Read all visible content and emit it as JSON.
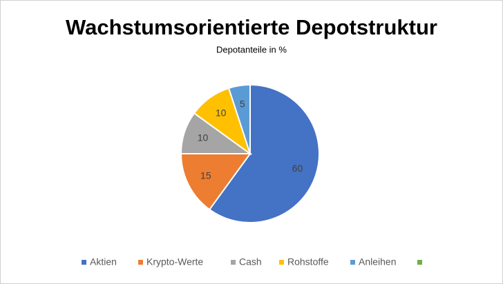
{
  "chart_data": {
    "type": "pie",
    "title": "Wachstumsorientierte Depotstruktur",
    "subtitle": "Depotanteile in %",
    "categories": [
      "Aktien",
      "Krypto-Werte",
      "Cash",
      "Rohstoffe",
      "Anleihen",
      null
    ],
    "values": [
      60,
      15,
      10,
      10,
      5,
      null
    ],
    "colors": [
      "#4472c4",
      "#ed7d31",
      "#a5a5a5",
      "#ffc000",
      "#5b9bd5",
      "#70ad47"
    ],
    "legend": "bottom"
  }
}
